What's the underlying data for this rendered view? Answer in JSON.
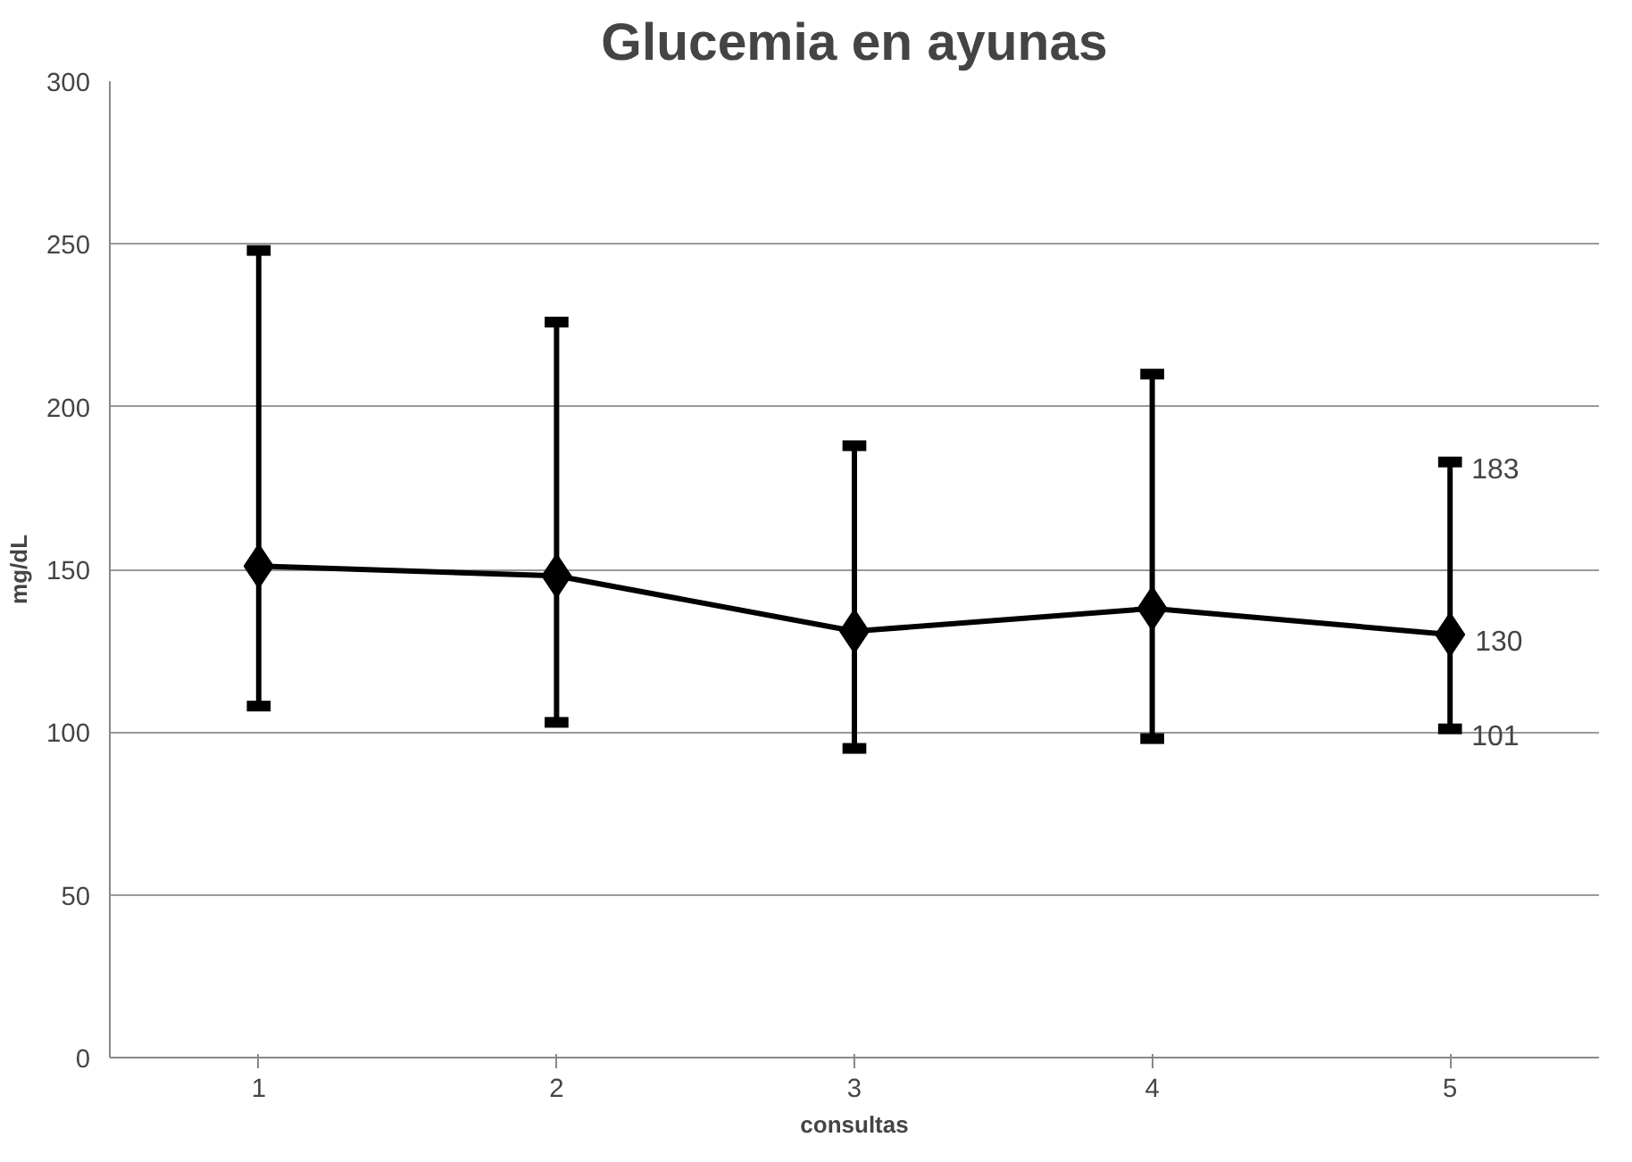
{
  "chart_data": {
    "type": "line",
    "title": "Glucemia en ayunas",
    "xlabel": "consultas",
    "ylabel": "mg/dL",
    "categories": [
      "1",
      "2",
      "3",
      "4",
      "5"
    ],
    "series": [
      {
        "color": "#000000",
        "values": [
          151,
          148,
          131,
          138,
          130
        ],
        "errors": [
          [
            108,
            248
          ],
          [
            103,
            226
          ],
          [
            95,
            188
          ],
          [
            98,
            210
          ],
          [
            101,
            183
          ]
        ],
        "value_labels": [
          null,
          null,
          null,
          null,
          "130"
        ]
      }
    ],
    "annotations": [
      {
        "text": "183",
        "x": "5",
        "y": 183
      },
      {
        "text": "101",
        "x": "5",
        "y": 101
      }
    ],
    "ylim": [
      0,
      300
    ],
    "yticks": [
      0,
      50,
      100,
      150,
      200,
      250,
      300
    ],
    "grid": "y",
    "marker": "diamond",
    "line_style": "solid"
  }
}
